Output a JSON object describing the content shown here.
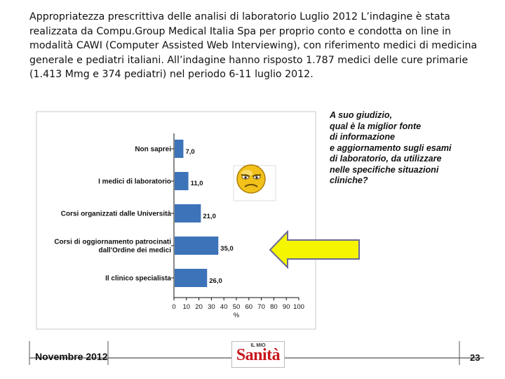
{
  "intro_text": "Appropriatezza prescrittiva delle analisi di laboratorio Luglio 2012 L’indagine è stata realizzata da Compu.Group Medical Italia Spa per proprio conto e condotta on line in modalità CAWI (Computer Assisted Web Interviewing), con riferimento medici di medicina generale e pediatri italiani. All’indagine hanno risposto 1.787 medici delle cure primarie (1.413 Mmg e 374 pediatri) nel periodo 6-11 luglio 2012.",
  "question": "A suo giudizio,\nqual è la miglior fonte\ndi informazione\ne aggiornamento sugli esami\ndi laboratorio, da utilizzare\nnelle specifiche situazioni\ncliniche?",
  "chart_data": {
    "type": "bar",
    "orientation": "horizontal",
    "categories": [
      "Non saprei",
      "I medici di laboratorio",
      "Corsi organizzati dalle Università",
      "Corsi di oggiornamento patrocinati|dall'Ordine dei medici",
      "Il clinico specialista"
    ],
    "values": [
      7.0,
      11.0,
      21.0,
      35.0,
      26.0
    ],
    "value_labels": [
      "7,0",
      "11,0",
      "21,0",
      "35,0",
      "26,0"
    ],
    "xlabel": "%",
    "xlim": [
      0,
      100
    ],
    "xticks": [
      "0",
      "10",
      "20",
      "30",
      "40",
      "50",
      "60",
      "70",
      "80",
      "90",
      "100"
    ],
    "bar_color": "#3d73b8",
    "grid": false
  },
  "footer": {
    "date": "Novembre 2012",
    "page_number": "23",
    "logo_small": "IL MIO",
    "logo_main": "Sanità"
  },
  "colors": {
    "arrow_fill": "#f5f500",
    "arrow_stroke": "#6a6a9a",
    "footer_line": "#555555",
    "logo_red": "#c8161d"
  },
  "icons": [
    "sad-smiley-icon",
    "left-arrow-icon"
  ]
}
